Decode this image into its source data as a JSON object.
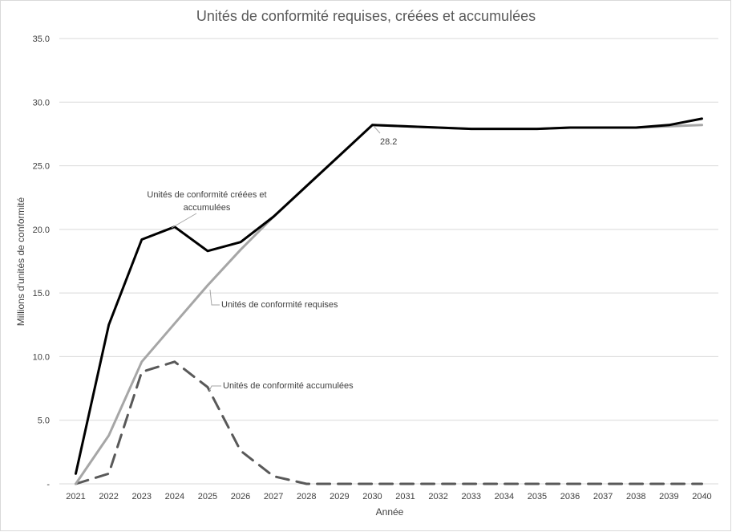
{
  "chart_data": {
    "type": "line",
    "title": "Unités de conformité requises, créées et accumulées",
    "xlabel": "Année",
    "ylabel": "Millions d'unités de conformité",
    "categories": [
      "2021",
      "2022",
      "2023",
      "2024",
      "2025",
      "2026",
      "2027",
      "2028",
      "2029",
      "2030",
      "2031",
      "2032",
      "2033",
      "2034",
      "2035",
      "2036",
      "2037",
      "2038",
      "2039",
      "2040"
    ],
    "y_tick_labels": [
      "-",
      "5.0",
      "10.0",
      "15.0",
      "20.0",
      "25.0",
      "30.0",
      "35.0"
    ],
    "ylim": [
      0,
      35
    ],
    "grid": true,
    "legend": "none",
    "series": [
      {
        "name": "Unités de conformité créées et accumulées",
        "color": "#000000",
        "style": "solid",
        "values": [
          0.8,
          12.5,
          19.2,
          20.2,
          18.3,
          19.0,
          21.0,
          23.4,
          25.8,
          28.2,
          28.1,
          28.0,
          27.9,
          27.9,
          27.9,
          28.0,
          28.0,
          28.0,
          28.2,
          28.7
        ]
      },
      {
        "name": "Unités de conformité requises",
        "color": "#a6a6a6",
        "style": "solid",
        "values": [
          0.0,
          3.8,
          9.6,
          12.6,
          15.6,
          18.4,
          21.0,
          23.4,
          25.8,
          28.2,
          28.1,
          28.0,
          27.9,
          27.9,
          27.9,
          28.0,
          28.0,
          28.0,
          28.1,
          28.2
        ]
      },
      {
        "name": "Unités de conformité accumulées",
        "color": "#595959",
        "style": "dashed",
        "values": [
          0.0,
          0.8,
          8.8,
          9.6,
          7.6,
          2.6,
          0.6,
          0.0,
          0.0,
          0.0,
          0.0,
          0.0,
          0.0,
          0.0,
          0.0,
          0.0,
          0.0,
          0.0,
          0.0,
          0.0
        ]
      }
    ],
    "annotations": [
      {
        "text_lines": [
          "Unités de conformité créées et",
          "accumulées"
        ],
        "series_index": 0
      },
      {
        "text_lines": [
          "Unités de conformité requises"
        ],
        "series_index": 1
      },
      {
        "text_lines": [
          "Unités de conformité accumulées"
        ],
        "series_index": 2
      },
      {
        "text_lines": [
          "28.2"
        ],
        "series_index": 0,
        "category": "2030"
      }
    ]
  }
}
